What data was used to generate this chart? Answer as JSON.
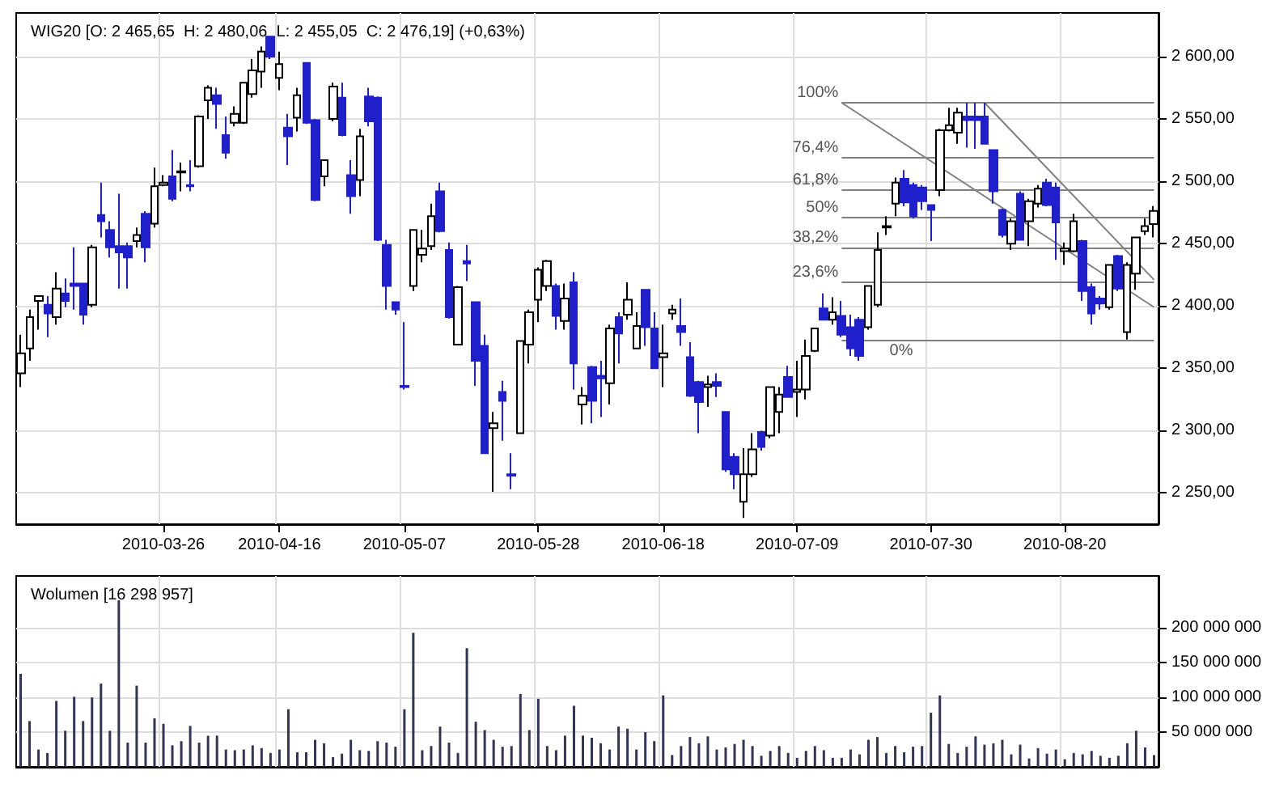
{
  "chart_data": [
    {
      "type": "candlestick",
      "title": "WIG20 [O: 2 465,65  H: 2 480,06  L: 2 455,05  C: 2 476,19] (+0,63%)",
      "categories": [
        null,
        null,
        null,
        null,
        null,
        null,
        null,
        null,
        null,
        null,
        null,
        null,
        null,
        null,
        null,
        null,
        "2010-03-26",
        null,
        null,
        null,
        null,
        null,
        null,
        null,
        null,
        null,
        null,
        null,
        null,
        "2010-04-16",
        null,
        null,
        null,
        null,
        null,
        null,
        null,
        null,
        null,
        null,
        null,
        null,
        null,
        "2010-05-07",
        null,
        null,
        null,
        null,
        null,
        null,
        null,
        null,
        null,
        null,
        null,
        null,
        null,
        null,
        "2010-05-28",
        null,
        null,
        null,
        null,
        null,
        null,
        null,
        null,
        null,
        null,
        null,
        null,
        null,
        "2010-06-18",
        null,
        null,
        null,
        null,
        null,
        null,
        null,
        null,
        null,
        null,
        null,
        null,
        null,
        null,
        "2010-07-09",
        null,
        null,
        null,
        null,
        null,
        null,
        null,
        null,
        null,
        null,
        null,
        null,
        null,
        null,
        "2010-07-30",
        null,
        null,
        null,
        null,
        null,
        null,
        null,
        null,
        null,
        null,
        null,
        null,
        null,
        null,
        "2010-08-20",
        null,
        null,
        null,
        null,
        null,
        null,
        null,
        null,
        null,
        null
      ],
      "colors": [
        "#ffffff",
        "#ffffff",
        "#ffffff",
        "#1f1fcc",
        "#ffffff",
        "#1f1fcc",
        "#1f1fcc",
        "#1f1fcc",
        "#ffffff",
        "#1f1fcc",
        "#1f1fcc",
        "#1f1fcc",
        "#1f1fcc",
        "#ffffff",
        "#1f1fcc",
        "#ffffff",
        "#ffffff",
        "#1f1fcc",
        "#ffffff",
        "#1f1fcc",
        "#ffffff",
        "#ffffff",
        "#1f1fcc",
        "#1f1fcc",
        "#ffffff",
        "#ffffff",
        "#ffffff",
        "#ffffff",
        "#1f1fcc",
        "#ffffff",
        "#1f1fcc",
        "#ffffff",
        "#1f1fcc",
        "#1f1fcc",
        "#ffffff",
        "#ffffff",
        "#1f1fcc",
        "#1f1fcc",
        "#ffffff",
        "#1f1fcc",
        "#1f1fcc",
        "#1f1fcc",
        "#1f1fcc",
        "#1f1fcc",
        "#ffffff",
        "#ffffff",
        "#ffffff",
        "#1f1fcc",
        "#1f1fcc",
        "#ffffff",
        "#1f1fcc",
        "#1f1fcc",
        "#1f1fcc",
        "#ffffff",
        "#1f1fcc",
        "#1f1fcc",
        "#ffffff",
        "#ffffff",
        "#ffffff",
        "#ffffff",
        "#1f1fcc",
        "#ffffff",
        "#1f1fcc",
        "#ffffff",
        "#1f1fcc",
        "#1f1fcc",
        "#ffffff",
        "#1f1fcc",
        "#ffffff",
        "#ffffff",
        "#1f1fcc",
        "#1f1fcc",
        "#ffffff",
        "#ffffff",
        "#1f1fcc",
        "#1f1fcc",
        "#1f1fcc",
        "#ffffff",
        "#1f1fcc",
        "#1f1fcc",
        "#1f1fcc",
        "#ffffff",
        "#ffffff",
        "#1f1fcc",
        "#ffffff",
        "#ffffff",
        "#1f1fcc",
        "#ffffff",
        "#ffffff",
        "#ffffff",
        "#1f1fcc",
        "#ffffff",
        "#1f1fcc",
        "#1f1fcc",
        "#1f1fcc",
        "#ffffff",
        "#ffffff",
        "#ffffff",
        "#ffffff",
        "#1f1fcc",
        "#1f1fcc",
        "#1f1fcc",
        "#1f1fcc",
        "#ffffff",
        "#ffffff",
        "#ffffff",
        "#1f1fcc",
        "#1f1fcc",
        "#1f1fcc",
        "#1f1fcc",
        "#1f1fcc",
        "#ffffff",
        "#1f1fcc",
        "#ffffff",
        "#ffffff",
        "#1f1fcc",
        "#1f1fcc",
        "#ffffff",
        "#ffffff",
        "#1f1fcc",
        "#1f1fcc",
        "#1f1fcc",
        "#ffffff",
        "#1f1fcc",
        "#ffffff",
        "#ffffff",
        "#ffffff",
        "#ffffff"
      ],
      "ohlc": [
        [
          2346,
          2377,
          2335,
          2362
        ],
        [
          2366,
          2397,
          2356,
          2391
        ],
        [
          2404,
          2408,
          2381,
          2408
        ],
        [
          2401,
          2408,
          2375,
          2394
        ],
        [
          2391,
          2427,
          2385,
          2414
        ],
        [
          2410,
          2422,
          2399,
          2404
        ],
        [
          2418,
          2447,
          2397,
          2416
        ],
        [
          2418,
          2418,
          2385,
          2393
        ],
        [
          2401,
          2449,
          2399,
          2447
        ],
        [
          2473,
          2499,
          2455,
          2468
        ],
        [
          2461,
          2468,
          2439,
          2447
        ],
        [
          2448,
          2490,
          2414,
          2443
        ],
        [
          2448,
          2451,
          2414,
          2439
        ],
        [
          2452,
          2463,
          2447,
          2457
        ],
        [
          2474,
          2476,
          2435,
          2447
        ],
        [
          2466,
          2511,
          2463,
          2496
        ],
        [
          2497,
          2505,
          2496,
          2499
        ],
        [
          2504,
          2525,
          2484,
          2486
        ],
        [
          2507,
          2515,
          2492,
          2508
        ],
        [
          2497,
          2517,
          2492,
          2496
        ],
        [
          2512,
          2553,
          2511,
          2552
        ],
        [
          2565,
          2577,
          2550,
          2575
        ],
        [
          2569,
          2575,
          2542,
          2562
        ],
        [
          2537,
          2552,
          2518,
          2523
        ],
        [
          2547,
          2560,
          2544,
          2554
        ],
        [
          2547,
          2579,
          2546,
          2579
        ],
        [
          2570,
          2598,
          2567,
          2589
        ],
        [
          2588,
          2608,
          2575,
          2604
        ],
        [
          2616,
          2616,
          2598,
          2600
        ],
        [
          2583,
          2604,
          2573,
          2594
        ],
        [
          2543,
          2554,
          2513,
          2536
        ],
        [
          2551,
          2575,
          2540,
          2569
        ],
        [
          2595,
          2595,
          2546,
          2547
        ],
        [
          2549,
          2550,
          2484,
          2485
        ],
        [
          2504,
          2517,
          2496,
          2517
        ],
        [
          2550,
          2579,
          2548,
          2576
        ],
        [
          2567,
          2579,
          2536,
          2537
        ],
        [
          2505,
          2517,
          2474,
          2488
        ],
        [
          2501,
          2542,
          2488,
          2536
        ],
        [
          2568,
          2575,
          2544,
          2548
        ],
        [
          2567,
          2568,
          2452,
          2453
        ],
        [
          2449,
          2453,
          2397,
          2416
        ],
        [
          2403,
          2403,
          2393,
          2397
        ],
        [
          2336,
          2387,
          2333,
          2335
        ],
        [
          2416,
          2461,
          2412,
          2461
        ],
        [
          2441,
          2461,
          2435,
          2446
        ],
        [
          2448,
          2482,
          2445,
          2472
        ],
        [
          2492,
          2499,
          2459,
          2460
        ],
        [
          2445,
          2451,
          2390,
          2391
        ],
        [
          2369,
          2416,
          2369,
          2415
        ],
        [
          2436,
          2449,
          2420,
          2434
        ],
        [
          2403,
          2403,
          2336,
          2356
        ],
        [
          2368,
          2377,
          2282,
          2282
        ],
        [
          2302,
          2315,
          2251,
          2306
        ],
        [
          2331,
          2340,
          2292,
          2324
        ],
        [
          2265,
          2282,
          2253,
          2264
        ],
        [
          2298,
          2372,
          2298,
          2372
        ],
        [
          2369,
          2397,
          2354,
          2395
        ],
        [
          2405,
          2431,
          2387,
          2429
        ],
        [
          2416,
          2437,
          2412,
          2436
        ],
        [
          2416,
          2418,
          2381,
          2392
        ],
        [
          2388,
          2418,
          2381,
          2406
        ],
        [
          2419,
          2427,
          2333,
          2354
        ],
        [
          2321,
          2335,
          2305,
          2328
        ],
        [
          2351,
          2352,
          2306,
          2324
        ],
        [
          2344,
          2356,
          2311,
          2342
        ],
        [
          2338,
          2385,
          2321,
          2382
        ],
        [
          2391,
          2395,
          2354,
          2378
        ],
        [
          2393,
          2419,
          2389,
          2405
        ],
        [
          2366,
          2395,
          2366,
          2384
        ],
        [
          2413,
          2413,
          2368,
          2383
        ],
        [
          2382,
          2395,
          2350,
          2350
        ],
        [
          2359,
          2385,
          2335,
          2362
        ],
        [
          2394,
          2401,
          2389,
          2397
        ],
        [
          2384,
          2406,
          2368,
          2379
        ],
        [
          2359,
          2371,
          2327,
          2328
        ],
        [
          2339,
          2340,
          2298,
          2323
        ],
        [
          2335,
          2344,
          2319,
          2337
        ],
        [
          2339,
          2346,
          2327,
          2336
        ],
        [
          2315,
          2315,
          2267,
          2269
        ],
        [
          2279,
          2282,
          2253,
          2265
        ],
        [
          2243,
          2286,
          2230,
          2265
        ],
        [
          2265,
          2298,
          2263,
          2285
        ],
        [
          2299,
          2300,
          2284,
          2287
        ],
        [
          2296,
          2335,
          2294,
          2335
        ],
        [
          2315,
          2335,
          2298,
          2329
        ],
        [
          2343,
          2352,
          2327,
          2327
        ],
        [
          2331,
          2356,
          2311,
          2333
        ],
        [
          2333,
          2373,
          2325,
          2360
        ],
        [
          2364,
          2382,
          2363,
          2382
        ],
        [
          2398,
          2410,
          2389,
          2389
        ],
        [
          2389,
          2407,
          2385,
          2395
        ],
        [
          2392,
          2404,
          2375,
          2377
        ],
        [
          2383,
          2393,
          2360,
          2366
        ],
        [
          2389,
          2391,
          2356,
          2360
        ],
        [
          2383,
          2416,
          2381,
          2416
        ],
        [
          2401,
          2459,
          2399,
          2445
        ],
        [
          2463,
          2472,
          2457,
          2464
        ],
        [
          2482,
          2503,
          2472,
          2499
        ],
        [
          2502,
          2509,
          2480,
          2483
        ],
        [
          2497,
          2499,
          2470,
          2472
        ],
        [
          2495,
          2497,
          2477,
          2484
        ],
        [
          2481,
          2481,
          2452,
          2477
        ],
        [
          2493,
          2542,
          2488,
          2541
        ],
        [
          2541,
          2559,
          2540,
          2545
        ],
        [
          2539,
          2559,
          2530,
          2555
        ],
        [
          2552,
          2563,
          2527,
          2549
        ],
        [
          2552,
          2563,
          2526,
          2549
        ],
        [
          2552,
          2563,
          2530,
          2530
        ],
        [
          2525,
          2525,
          2482,
          2492
        ],
        [
          2477,
          2478,
          2455,
          2457
        ],
        [
          2450,
          2470,
          2445,
          2468
        ],
        [
          2490,
          2492,
          2453,
          2453
        ],
        [
          2468,
          2486,
          2448,
          2484
        ],
        [
          2482,
          2497,
          2479,
          2494
        ],
        [
          2499,
          2502,
          2480,
          2481
        ],
        [
          2495,
          2499,
          2437,
          2467
        ],
        [
          2444,
          2451,
          2433,
          2446
        ],
        [
          2444,
          2474,
          2443,
          2468
        ],
        [
          2452,
          2453,
          2404,
          2412
        ],
        [
          2415,
          2418,
          2385,
          2394
        ],
        [
          2406,
          2408,
          2397,
          2402
        ],
        [
          2399,
          2433,
          2397,
          2433
        ],
        [
          2440,
          2441,
          2412,
          2414
        ],
        [
          2379,
          2435,
          2373,
          2433
        ],
        [
          2426,
          2455,
          2413,
          2455
        ],
        [
          2460,
          2470,
          2457,
          2464
        ],
        [
          2465.65,
          2480.06,
          2455.05,
          2476.19
        ]
      ],
      "series": [
        {
          "type": "line",
          "color": "#808080",
          "values": [
            null,
            null,
            null,
            null,
            null,
            null,
            null,
            null,
            null,
            null,
            null,
            null,
            null,
            null,
            null,
            null,
            null,
            null,
            null,
            null,
            null,
            null,
            null,
            null,
            null,
            null,
            null,
            null,
            null,
            null,
            null,
            null,
            null,
            null,
            null,
            null,
            null,
            null,
            null,
            null,
            null,
            null,
            null,
            null,
            null,
            null,
            null,
            null,
            null,
            null,
            null,
            null,
            null,
            null,
            null,
            null,
            null,
            null,
            null,
            null,
            null,
            null,
            null,
            null,
            null,
            null,
            null,
            null,
            null,
            null,
            null,
            null,
            null,
            null,
            null,
            null,
            null,
            null,
            null,
            null,
            null,
            null,
            null,
            null,
            null,
            null,
            null,
            null,
            null,
            null,
            null,
            null,
            2563,
            null,
            null,
            null,
            null,
            null,
            null,
            null,
            null,
            null,
            null,
            null,
            null,
            null,
            null,
            null,
            null,
            null,
            null,
            null,
            null,
            null,
            null,
            null,
            null,
            null,
            null,
            null,
            null,
            null,
            null,
            null,
            null,
            null,
            null,
            2399
          ]
        },
        {
          "type": "line",
          "color": "#808080",
          "values": [
            null,
            null,
            null,
            null,
            null,
            null,
            null,
            null,
            null,
            null,
            null,
            null,
            null,
            null,
            null,
            null,
            null,
            null,
            null,
            null,
            null,
            null,
            null,
            null,
            null,
            null,
            null,
            null,
            null,
            null,
            null,
            null,
            null,
            null,
            null,
            null,
            null,
            null,
            null,
            null,
            null,
            null,
            null,
            null,
            null,
            null,
            null,
            null,
            null,
            null,
            null,
            null,
            null,
            null,
            null,
            null,
            null,
            null,
            null,
            null,
            null,
            null,
            null,
            null,
            null,
            null,
            null,
            null,
            null,
            null,
            null,
            null,
            null,
            null,
            null,
            null,
            null,
            null,
            null,
            null,
            null,
            null,
            null,
            null,
            null,
            null,
            null,
            null,
            null,
            null,
            null,
            null,
            null,
            null,
            null,
            null,
            null,
            null,
            null,
            null,
            null,
            null,
            null,
            null,
            null,
            null,
            null,
            null,
            2563,
            null,
            null,
            null,
            null,
            null,
            null,
            null,
            null,
            null,
            null,
            null,
            null,
            null,
            null,
            null,
            null,
            null,
            null,
            2421
          ]
        }
      ],
      "ref_lines": [
        {
          "axis": "y",
          "value": 2563,
          "color": "#808080"
        },
        {
          "axis": "y",
          "value": 2519,
          "color": "#808080"
        },
        {
          "axis": "y",
          "value": 2493,
          "color": "#808080"
        },
        {
          "axis": "y",
          "value": 2471,
          "color": "#808080"
        },
        {
          "axis": "y",
          "value": 2447,
          "color": "#808080"
        },
        {
          "axis": "y",
          "value": 2419,
          "color": "#808080"
        },
        {
          "axis": "y",
          "value": 2373,
          "color": "#808080"
        }
      ],
      "annotations": [
        "100%",
        "76,4%",
        "61,8%",
        "50%",
        "38,2%",
        "23,6%",
        "0%"
      ],
      "ylim": [
        2225,
        2635
      ],
      "yticks": [
        {
          "value": 2250,
          "label": "2 250,00"
        },
        {
          "value": 2300,
          "label": "2 300,00"
        },
        {
          "value": 2350,
          "label": "2 350,00"
        },
        {
          "value": 2400,
          "label": "2 400,00"
        },
        {
          "value": 2450,
          "label": "2 450,00"
        },
        {
          "value": 2500,
          "label": "2 500,00"
        },
        {
          "value": 2550,
          "label": "2 550,00"
        },
        {
          "value": 2600,
          "label": "2 600,00"
        }
      ],
      "grid": true
    },
    {
      "type": "bar",
      "title": "Wolumen [16 298 957]",
      "categories": [
        null,
        null,
        null,
        null,
        null,
        null,
        null,
        null,
        null,
        null,
        null,
        null,
        null,
        null,
        null,
        null,
        "2010-03-26",
        null,
        null,
        null,
        null,
        null,
        null,
        null,
        null,
        null,
        null,
        null,
        null,
        "2010-04-16",
        null,
        null,
        null,
        null,
        null,
        null,
        null,
        null,
        null,
        null,
        null,
        null,
        null,
        "2010-05-07",
        null,
        null,
        null,
        null,
        null,
        null,
        null,
        null,
        null,
        null,
        null,
        null,
        null,
        null,
        "2010-05-28",
        null,
        null,
        null,
        null,
        null,
        null,
        null,
        null,
        null,
        null,
        null,
        null,
        null,
        "2010-06-18",
        null,
        null,
        null,
        null,
        null,
        null,
        null,
        null,
        null,
        null,
        null,
        null,
        null,
        null,
        "2010-07-09",
        null,
        null,
        null,
        null,
        null,
        null,
        null,
        null,
        null,
        null,
        null,
        null,
        null,
        null,
        "2010-07-30",
        null,
        null,
        null,
        null,
        null,
        null,
        null,
        null,
        null,
        null,
        null,
        null,
        null,
        null,
        "2010-08-20",
        null,
        null,
        null,
        null,
        null,
        null,
        null,
        null,
        null,
        null
      ],
      "series": [
        {
          "color": "#333355",
          "values": [
            134000000,
            66000000,
            25000000,
            20000000,
            95000000,
            52000000,
            101000000,
            66000000,
            100000000,
            120000000,
            52000000,
            240000000,
            35000000,
            117000000,
            35000000,
            70000000,
            62000000,
            31000000,
            37000000,
            59000000,
            35000000,
            45000000,
            45000000,
            25000000,
            24000000,
            25000000,
            31000000,
            27000000,
            20000000,
            25000000,
            83000000,
            21000000,
            21000000,
            39000000,
            34000000,
            14000000,
            19000000,
            39000000,
            24000000,
            23000000,
            37000000,
            35000000,
            29000000,
            83000000,
            193000000,
            24000000,
            30000000,
            58000000,
            35000000,
            20000000,
            171000000,
            65000000,
            53000000,
            39000000,
            29000000,
            30000000,
            105000000,
            53000000,
            98000000,
            30000000,
            24000000,
            45000000,
            88000000,
            45000000,
            42000000,
            34000000,
            25000000,
            58000000,
            55000000,
            25000000,
            50000000,
            37000000,
            103000000,
            17000000,
            30000000,
            43000000,
            34000000,
            44000000,
            25000000,
            28000000,
            33000000,
            39000000,
            30000000,
            16000000,
            23000000,
            30000000,
            20000000,
            13000000,
            23000000,
            30000000,
            24000000,
            13000000,
            13000000,
            25000000,
            18000000,
            39000000,
            43000000,
            20000000,
            30000000,
            21000000,
            29000000,
            30000000,
            78000000,
            103000000,
            33000000,
            20000000,
            29000000,
            44000000,
            32000000,
            34000000,
            39000000,
            18000000,
            32000000,
            12000000,
            27000000,
            19000000,
            25000000,
            11000000,
            20000000,
            18000000,
            23000000,
            16000000,
            13000000,
            16000000,
            34000000,
            52000000,
            28000000,
            17000000
          ]
        }
      ],
      "ylim": [
        0,
        275000000
      ],
      "yticks": [
        {
          "value": 50000000,
          "label": "50 000 000"
        },
        {
          "value": 100000000,
          "label": "100 000 000"
        },
        {
          "value": 150000000,
          "label": "150 000 000"
        },
        {
          "value": 200000000,
          "label": "200 000 000"
        }
      ],
      "tick_labels": "y",
      "grid": true
    }
  ]
}
